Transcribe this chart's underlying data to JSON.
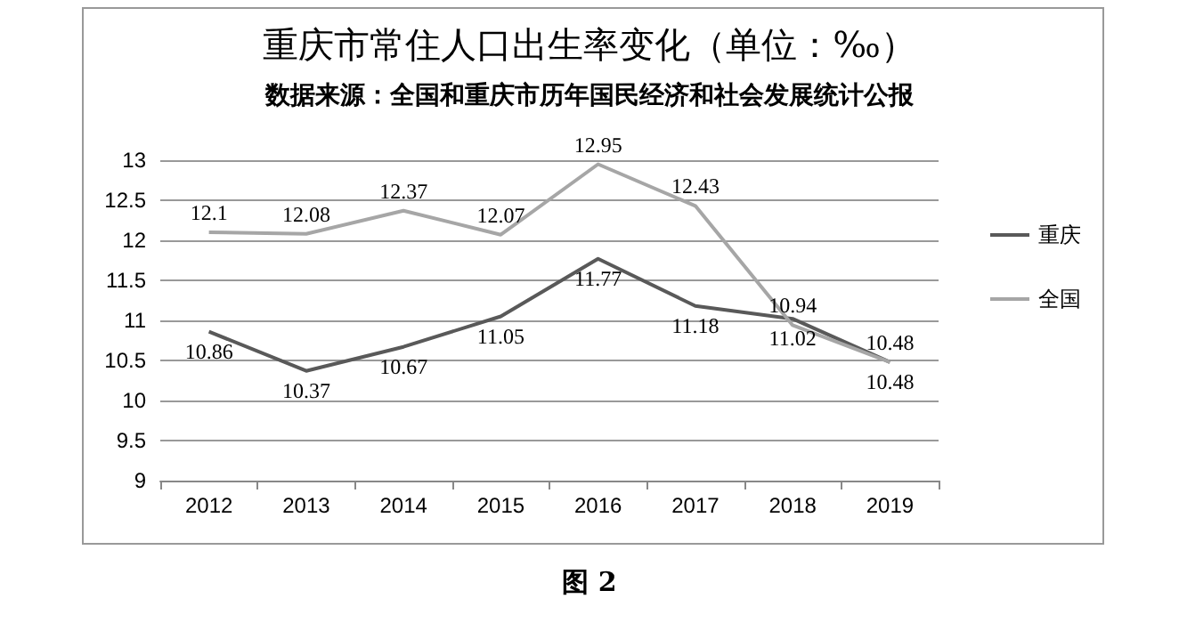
{
  "chart_data": {
    "type": "line",
    "title": "重庆市常住人口出生率变化（单位：‰）",
    "subtitle": "数据来源：全国和重庆市历年国民经济和社会发展统计公报",
    "categories": [
      "2012",
      "2013",
      "2014",
      "2015",
      "2016",
      "2017",
      "2018",
      "2019"
    ],
    "series": [
      {
        "name": "重庆",
        "color": "#595959",
        "values": [
          10.86,
          10.37,
          10.67,
          11.05,
          11.77,
          11.18,
          11.02,
          10.48
        ]
      },
      {
        "name": "全国",
        "color": "#a6a6a6",
        "values": [
          12.1,
          12.08,
          12.37,
          12.07,
          12.95,
          12.43,
          10.94,
          10.48
        ]
      }
    ],
    "ylim": [
      9,
      13
    ],
    "yticks": [
      9,
      9.5,
      10,
      10.5,
      11,
      11.5,
      12,
      12.5,
      13
    ],
    "grid": "y",
    "legend": "right",
    "marker": "none",
    "line_style": "solid",
    "data_labels": true,
    "annotations": [
      "图 2"
    ]
  }
}
